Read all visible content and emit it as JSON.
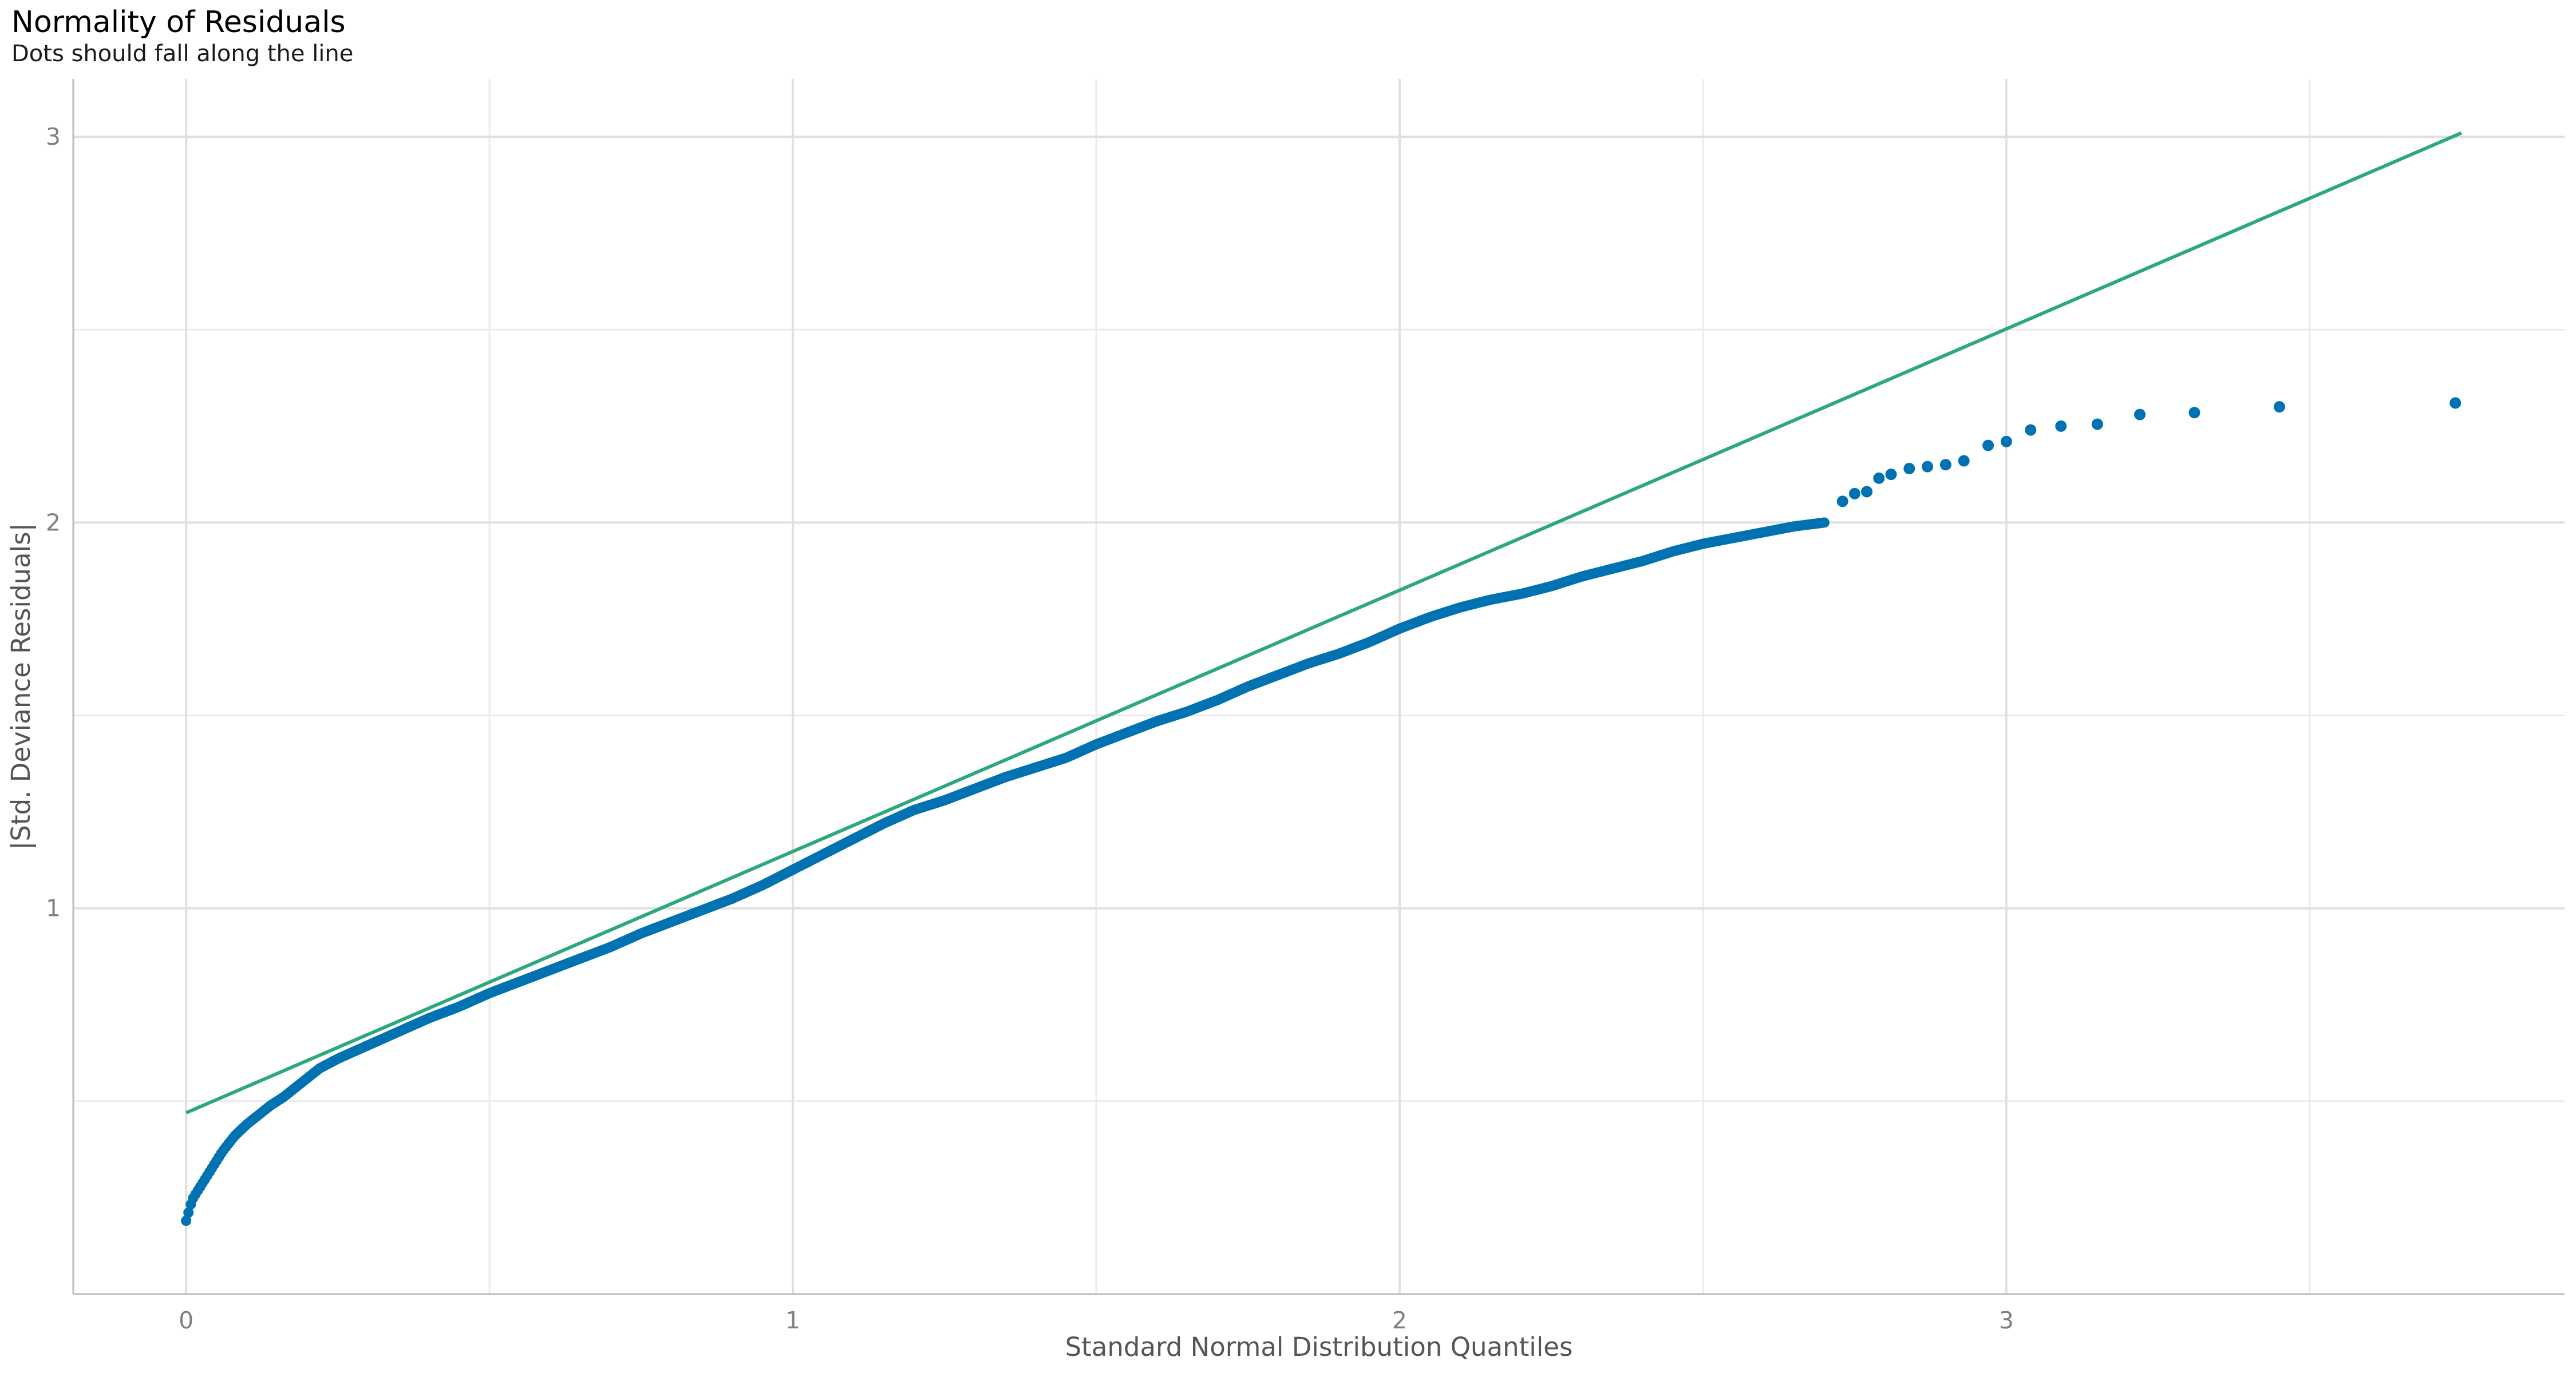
{
  "chart_data": {
    "type": "scatter",
    "title": "Normality of Residuals",
    "subtitle": "Dots should fall along the line",
    "xlabel": "Standard Normal Distribution Quantiles",
    "ylabel": "|Std. Deviance Residuals|",
    "xlim": [
      -0.186,
      3.92
    ],
    "ylim": [
      -0.0,
      3.15
    ],
    "x_ticks": [
      0,
      1,
      2,
      3
    ],
    "y_ticks": [
      1,
      2,
      3
    ],
    "grid": true,
    "point_color": "#0072B2",
    "line_color": "#2CA87F",
    "reference_line": [
      [
        0.0,
        0.47
      ],
      [
        3.75,
        3.01
      ]
    ],
    "curve": [
      [
        0.0,
        0.19
      ],
      [
        0.01,
        0.245
      ],
      [
        0.02,
        0.27
      ],
      [
        0.03,
        0.295
      ],
      [
        0.04,
        0.32
      ],
      [
        0.05,
        0.345
      ],
      [
        0.06,
        0.37
      ],
      [
        0.07,
        0.39
      ],
      [
        0.08,
        0.41
      ],
      [
        0.09,
        0.425
      ],
      [
        0.1,
        0.44
      ],
      [
        0.12,
        0.465
      ],
      [
        0.14,
        0.49
      ],
      [
        0.16,
        0.51
      ],
      [
        0.18,
        0.535
      ],
      [
        0.2,
        0.56
      ],
      [
        0.22,
        0.585
      ],
      [
        0.25,
        0.61
      ],
      [
        0.3,
        0.645
      ],
      [
        0.35,
        0.68
      ],
      [
        0.4,
        0.715
      ],
      [
        0.45,
        0.745
      ],
      [
        0.5,
        0.78
      ],
      [
        0.55,
        0.81
      ],
      [
        0.6,
        0.84
      ],
      [
        0.65,
        0.87
      ],
      [
        0.7,
        0.9
      ],
      [
        0.75,
        0.935
      ],
      [
        0.8,
        0.965
      ],
      [
        0.85,
        0.995
      ],
      [
        0.9,
        1.025
      ],
      [
        0.95,
        1.06
      ],
      [
        1.0,
        1.1
      ],
      [
        1.05,
        1.14
      ],
      [
        1.1,
        1.18
      ],
      [
        1.15,
        1.22
      ],
      [
        1.2,
        1.255
      ],
      [
        1.25,
        1.28
      ],
      [
        1.3,
        1.31
      ],
      [
        1.35,
        1.34
      ],
      [
        1.4,
        1.365
      ],
      [
        1.45,
        1.39
      ],
      [
        1.5,
        1.425
      ],
      [
        1.55,
        1.455
      ],
      [
        1.6,
        1.485
      ],
      [
        1.65,
        1.51
      ],
      [
        1.7,
        1.54
      ],
      [
        1.75,
        1.575
      ],
      [
        1.8,
        1.605
      ],
      [
        1.85,
        1.635
      ],
      [
        1.9,
        1.66
      ],
      [
        1.95,
        1.69
      ],
      [
        2.0,
        1.725
      ],
      [
        2.05,
        1.755
      ],
      [
        2.1,
        1.78
      ],
      [
        2.15,
        1.8
      ],
      [
        2.2,
        1.815
      ],
      [
        2.25,
        1.835
      ],
      [
        2.3,
        1.86
      ],
      [
        2.35,
        1.88
      ],
      [
        2.4,
        1.9
      ],
      [
        2.45,
        1.925
      ],
      [
        2.5,
        1.945
      ],
      [
        2.55,
        1.96
      ],
      [
        2.6,
        1.975
      ],
      [
        2.65,
        1.99
      ],
      [
        2.7,
        2.0
      ]
    ],
    "tail_points": [
      [
        2.73,
        2.055
      ],
      [
        2.75,
        2.075
      ],
      [
        2.77,
        2.08
      ],
      [
        2.79,
        2.115
      ],
      [
        2.81,
        2.125
      ],
      [
        2.84,
        2.14
      ],
      [
        2.87,
        2.145
      ],
      [
        2.9,
        2.15
      ],
      [
        2.93,
        2.16
      ],
      [
        2.97,
        2.2
      ],
      [
        3.0,
        2.21
      ],
      [
        3.04,
        2.24
      ],
      [
        3.09,
        2.25
      ],
      [
        3.15,
        2.255
      ],
      [
        3.22,
        2.28
      ],
      [
        3.31,
        2.285
      ],
      [
        3.45,
        2.3
      ],
      [
        3.74,
        2.31
      ]
    ]
  }
}
